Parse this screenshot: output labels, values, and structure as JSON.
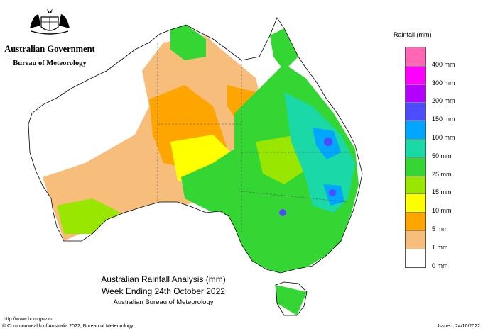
{
  "header": {
    "government": "Australian Government",
    "bureau": "Bureau of Meteorology"
  },
  "legend": {
    "title": "Rainfall (mm)",
    "top_swatch_color": "#ff66b3",
    "items": [
      {
        "label": "400 mm",
        "color": "#ff00ff"
      },
      {
        "label": "300 mm",
        "color": "#b300ff"
      },
      {
        "label": "200 mm",
        "color": "#4d4dff"
      },
      {
        "label": "150 mm",
        "color": "#00a6ff"
      },
      {
        "label": "100 mm",
        "color": "#1ad9a6"
      },
      {
        "label": "50 mm",
        "color": "#33d633"
      },
      {
        "label": "25 mm",
        "color": "#99e600"
      },
      {
        "label": "15 mm",
        "color": "#ffff00"
      },
      {
        "label": "10 mm",
        "color": "#ffa500"
      },
      {
        "label": "5 mm",
        "color": "#f7bd7a"
      },
      {
        "label": "1 mm",
        "color": "#ffffff"
      },
      {
        "label": "0 mm",
        "color": ""
      }
    ]
  },
  "caption": {
    "line1": "Australian Rainfall Analysis (mm)",
    "line2": "Week Ending 24th October 2022",
    "line3": "Australian Bureau of Meteorology"
  },
  "footer": {
    "url": "http://www.bom.gov.au",
    "copyright": "© Commonwealth of Australia 2022, Bureau of Meteorology",
    "issued": "Issued: 24/10/2022"
  }
}
